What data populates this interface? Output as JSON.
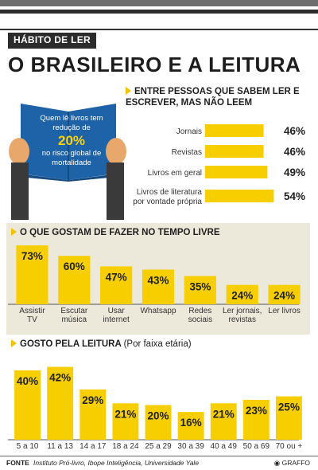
{
  "header": {
    "section_tag": "HÁBITO DE LER",
    "headline": "O BRASILEIRO E A LEITURA"
  },
  "book_fact": {
    "line1": "Quem lê livros tem redução de",
    "big": "20%",
    "line2": "no risco global de mortalidade"
  },
  "colors": {
    "bar": "#f7cf00",
    "bar_light": "#f7e04a",
    "panel": "#ece8da",
    "book": "#1e63a8"
  },
  "chart_data": [
    {
      "type": "bar",
      "orientation": "horizontal",
      "title": "ENTRE PESSOAS QUE SABEM LER E ESCREVER, MAS NÃO LEEM",
      "categories": [
        "Jornais",
        "Revistas",
        "Livros em geral",
        "Livros de literatura por vontade própria"
      ],
      "category_lines": [
        [
          "Jornais"
        ],
        [
          "Revistas"
        ],
        [
          "Livros em geral"
        ],
        [
          "Livros de literatura",
          "por vontade própria"
        ]
      ],
      "values": [
        46,
        46,
        49,
        54
      ],
      "value_labels": [
        "46%",
        "46%",
        "49%",
        "54%"
      ]
    },
    {
      "type": "bar",
      "title": "O QUE GOSTAM DE FAZER NO TEMPO LIVRE",
      "categories": [
        "Assistir TV",
        "Escutar música",
        "Usar internet",
        "Whatsapp",
        "Redes sociais",
        "Ler jornais, revistas",
        "Ler livros"
      ],
      "category_lines": [
        [
          "Assistir",
          "TV"
        ],
        [
          "Escutar",
          "música"
        ],
        [
          "Usar",
          "internet"
        ],
        [
          "Whatsapp"
        ],
        [
          "Redes",
          "sociais"
        ],
        [
          "Ler jornais,",
          "revistas"
        ],
        [
          "Ler livros"
        ]
      ],
      "values": [
        73,
        60,
        47,
        43,
        35,
        24,
        24
      ],
      "value_labels": [
        "73%",
        "60%",
        "47%",
        "43%",
        "35%",
        "24%",
        "24%"
      ]
    },
    {
      "type": "bar",
      "title": "GOSTO PELA LEITURA",
      "subtitle": "(Por faixa etária)",
      "categories": [
        "5 a 10",
        "11 a 13",
        "14 a 17",
        "18 a 24",
        "25 a 29",
        "30 a 39",
        "40 a 49",
        "50 a 69",
        "70 ou +"
      ],
      "values": [
        40,
        42,
        29,
        21,
        20,
        16,
        21,
        23,
        25
      ],
      "value_labels": [
        "40%",
        "42%",
        "29%",
        "21%",
        "20%",
        "16%",
        "21%",
        "23%",
        "25%"
      ]
    }
  ],
  "footer": {
    "source_label": "FONTE",
    "source_text": "Instituto Pró-livro, Ibope Inteligência, Universidade Yale",
    "credit": "GRAFFO"
  }
}
